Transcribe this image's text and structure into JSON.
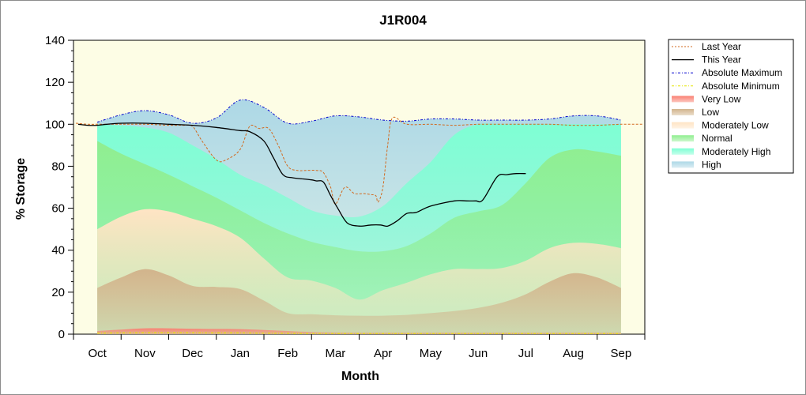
{
  "chart_data": {
    "type": "area",
    "title": "J1R004",
    "xlabel": "Month",
    "ylabel": "% Storage",
    "ylim": [
      0,
      140
    ],
    "yticks": [
      0,
      20,
      40,
      60,
      80,
      100,
      120,
      140
    ],
    "categories": [
      "Oct",
      "Nov",
      "Dec",
      "Jan",
      "Feb",
      "Mar",
      "Apr",
      "May",
      "Jun",
      "Jul",
      "Aug",
      "Sep"
    ],
    "legend": "right",
    "grid": false,
    "colors": {
      "plot_bg": "#fdfde5",
      "last_year": "#d2691e",
      "this_year": "#000000",
      "abs_max": "#0000cd",
      "abs_min": "#e6e600",
      "very_low": "#fa8072",
      "low": "#d2b48c",
      "moderately_low": "#ffe4c4",
      "normal": "#90ee90",
      "moderately_high": "#7fffd4",
      "high": "#add8e6"
    },
    "band_x": [
      0.0,
      0.5,
      1.0,
      1.5,
      2.0,
      2.5,
      3.0,
      3.5,
      4.0,
      4.5,
      5.0,
      5.5,
      6.0,
      6.5,
      7.0,
      7.5,
      8.0,
      8.5,
      9.0,
      9.5,
      10.0,
      10.5,
      11.0
    ],
    "bands": {
      "very_low": [
        1.5,
        2.2,
        2.8,
        2.8,
        2.6,
        2.5,
        2.4,
        2.0,
        1.5,
        1.0,
        0.8,
        0.7,
        0.7,
        0.7,
        0.7,
        0.7,
        0.7,
        0.7,
        0.7,
        0.7,
        0.7,
        0.7,
        0.7
      ],
      "low": [
        22,
        27,
        31,
        28,
        23,
        22.5,
        21.5,
        16,
        10,
        9.5,
        9,
        8.8,
        8.8,
        9.2,
        10,
        11,
        12.5,
        15,
        19,
        25,
        29,
        27,
        22
      ],
      "moderately_low": [
        50,
        56,
        59.5,
        58.5,
        55,
        51.5,
        46,
        36,
        27,
        25.5,
        22,
        16.5,
        21,
        24.5,
        28.5,
        31,
        31,
        31.5,
        35,
        41,
        43.5,
        43,
        41
      ],
      "normal": [
        92,
        86,
        81,
        76,
        70.5,
        65,
        59,
        53,
        48,
        44,
        41.5,
        39.5,
        39.5,
        42,
        48,
        55.5,
        58.5,
        61.5,
        72,
        84,
        88,
        87,
        85
      ],
      "moderately_high": [
        100,
        99.5,
        98.5,
        96,
        90,
        83.5,
        76,
        71,
        65,
        59,
        56.5,
        56,
        61,
        72,
        82,
        95,
        100,
        100,
        100,
        100,
        100,
        100,
        100
      ],
      "high": [
        101,
        104.5,
        106.5,
        104.5,
        100.5,
        103,
        111.5,
        108,
        100.5,
        101.5,
        104,
        103.5,
        102,
        101.5,
        102.5,
        102.5,
        102,
        102,
        102,
        102.5,
        104,
        104,
        102
      ]
    },
    "series": [
      {
        "name": "Last Year",
        "x": [
          -0.45,
          -0.2,
          0.0,
          0.5,
          1.0,
          1.5,
          1.8,
          2.0,
          2.2,
          2.5,
          2.7,
          3.0,
          3.2,
          3.4,
          3.6,
          3.8,
          4.0,
          4.2,
          4.4,
          4.6,
          4.75,
          4.9,
          5.0,
          5.2,
          5.4,
          5.6,
          5.75,
          5.85,
          5.9,
          6.0,
          6.1,
          6.2,
          6.5,
          7.0,
          7.5,
          8.0,
          8.5,
          9.0,
          9.5,
          10.0,
          10.5,
          11.0,
          11.45
        ],
        "values": [
          100.5,
          100,
          100,
          100,
          100,
          99.5,
          99.5,
          99,
          92,
          83,
          83,
          88,
          99,
          98,
          98,
          90,
          80,
          78,
          78,
          78,
          77,
          70,
          62,
          70,
          67,
          67,
          66.5,
          66,
          63,
          70,
          90,
          103,
          100,
          100,
          99.5,
          100,
          100,
          100,
          100,
          99.5,
          99.5,
          100,
          100
        ]
      },
      {
        "name": "This Year",
        "x": [
          -0.4,
          -0.2,
          0.0,
          0.2,
          0.5,
          1.0,
          1.5,
          2.0,
          2.5,
          3.0,
          3.2,
          3.5,
          3.7,
          3.9,
          4.1,
          4.3,
          4.5,
          4.6,
          4.75,
          4.9,
          5.05,
          5.25,
          5.5,
          5.75,
          5.95,
          6.1,
          6.3,
          6.5,
          6.7,
          7.0,
          7.5,
          7.75,
          7.95,
          8.1,
          8.4,
          8.6,
          8.8,
          9.0
        ],
        "values": [
          100,
          99.5,
          99.5,
          100,
          100.5,
          100.5,
          100,
          99.5,
          98.5,
          97,
          96.5,
          92,
          84,
          76,
          74.5,
          74,
          73.5,
          73,
          72.5,
          66,
          60,
          53,
          51.5,
          52,
          52,
          51.5,
          54,
          57.5,
          58,
          61,
          63.5,
          63.5,
          63.5,
          64,
          75,
          76,
          76.5,
          76.5
        ]
      },
      {
        "name": "Absolute Maximum",
        "x": [
          0.0,
          0.5,
          1.0,
          1.5,
          2.0,
          2.5,
          3.0,
          3.5,
          4.0,
          4.5,
          5.0,
          5.5,
          6.0,
          6.5,
          7.0,
          7.5,
          8.0,
          8.5,
          9.0,
          9.5,
          10.0,
          10.5,
          11.0
        ],
        "values": [
          101,
          104.5,
          106.5,
          104.5,
          100.5,
          103,
          111.5,
          108,
          100.5,
          101.5,
          104,
          103.5,
          102,
          101.5,
          102.5,
          102.5,
          102,
          102,
          102,
          102.5,
          104,
          104,
          102
        ]
      },
      {
        "name": "Absolute Minimum",
        "x": [
          0.0,
          0.5,
          1.0,
          1.5,
          2.0,
          2.5,
          3.0,
          3.5,
          4.0,
          4.5,
          5.0,
          5.5,
          6.0,
          6.5,
          7.0,
          7.5,
          8.0,
          8.5,
          9.0,
          9.5,
          10.0,
          10.5,
          11.0
        ],
        "values": [
          0.5,
          0.6,
          0.7,
          0.7,
          0.7,
          0.6,
          0.6,
          0.5,
          0.4,
          0.3,
          0.3,
          0.3,
          0.3,
          0.3,
          0.3,
          0.3,
          0.3,
          0.3,
          0.3,
          0.3,
          0.3,
          0.3,
          0.3
        ]
      }
    ],
    "legend_entries": [
      {
        "key": "last_year",
        "label": "Last Year",
        "style": "dash"
      },
      {
        "key": "this_year",
        "label": "This Year",
        "style": "solid"
      },
      {
        "key": "abs_max",
        "label": "Absolute Maximum",
        "style": "dashdot"
      },
      {
        "key": "abs_min",
        "label": "Absolute Minimum",
        "style": "dashdot"
      },
      {
        "key": "very_low",
        "label": "Very Low",
        "style": "band"
      },
      {
        "key": "low",
        "label": "Low",
        "style": "band"
      },
      {
        "key": "moderately_low",
        "label": "Moderately Low",
        "style": "band"
      },
      {
        "key": "normal",
        "label": "Normal",
        "style": "band"
      },
      {
        "key": "moderately_high",
        "label": "Moderately High",
        "style": "band"
      },
      {
        "key": "high",
        "label": "High",
        "style": "band"
      }
    ]
  }
}
